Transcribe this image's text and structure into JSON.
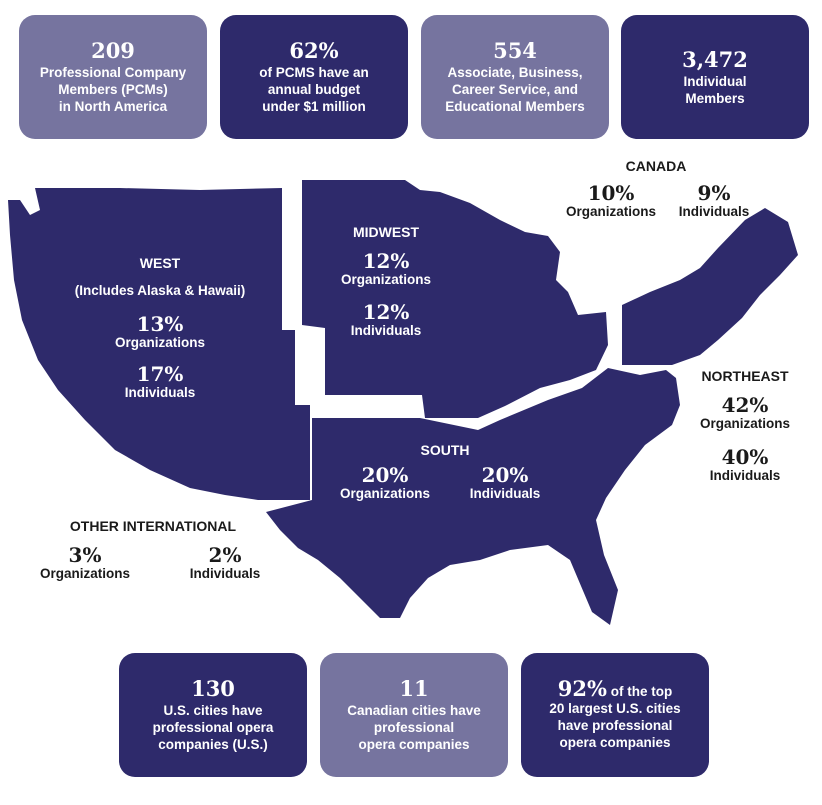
{
  "top_cards": [
    {
      "number": "209",
      "lines": [
        "Professional Company",
        "Members (PCMs)",
        "in North America"
      ],
      "style": "light"
    },
    {
      "number": "62%",
      "lines": [
        "of PCMS have an",
        "annual budget",
        "under $1 million"
      ],
      "style": "dark"
    },
    {
      "number": "554",
      "lines": [
        "Associate, Business,",
        "Career Service, and",
        "Educational Members"
      ],
      "style": "light"
    },
    {
      "number": "3,472",
      "lines": [
        "Individual",
        "Members"
      ],
      "style": "dark"
    }
  ],
  "regions": {
    "west": {
      "name": "WEST",
      "note": "(Includes Alaska & Hawaii)",
      "org_pct": "13%",
      "org_label": "Organizations",
      "ind_pct": "17%",
      "ind_label": "Individuals"
    },
    "midwest": {
      "name": "MIDWEST",
      "org_pct": "12%",
      "org_label": "Organizations",
      "ind_pct": "12%",
      "ind_label": "Individuals"
    },
    "south": {
      "name": "SOUTH",
      "org_pct": "20%",
      "org_label": "Organizations",
      "ind_pct": "20%",
      "ind_label": "Individuals"
    },
    "northeast": {
      "name": "NORTHEAST",
      "org_pct": "42%",
      "org_label": "Organizations",
      "ind_pct": "40%",
      "ind_label": "Individuals"
    },
    "canada": {
      "name": "CANADA",
      "org_pct": "10%",
      "org_label": "Organizations",
      "ind_pct": "9%",
      "ind_label": "Individuals"
    },
    "other_international": {
      "name": "OTHER INTERNATIONAL",
      "org_pct": "3%",
      "org_label": "Organizations",
      "ind_pct": "2%",
      "ind_label": "Individuals"
    }
  },
  "bottom_cards": [
    {
      "number": "130",
      "lines": [
        "U.S. cities have",
        "professional opera",
        "companies (U.S.)"
      ],
      "style": "dark"
    },
    {
      "number": "11",
      "lines": [
        "Canadian cities have",
        "professional",
        "opera companies"
      ],
      "style": "light"
    },
    {
      "number": "92%",
      "inline_text": " of the top",
      "lines": [
        "20 largest U.S. cities",
        "have professional",
        "opera companies"
      ],
      "style": "dark"
    }
  ],
  "colors": {
    "dark_navy": "#2e2a6b",
    "muted_purple": "#76749f",
    "text_dark": "#1a1a1a"
  }
}
